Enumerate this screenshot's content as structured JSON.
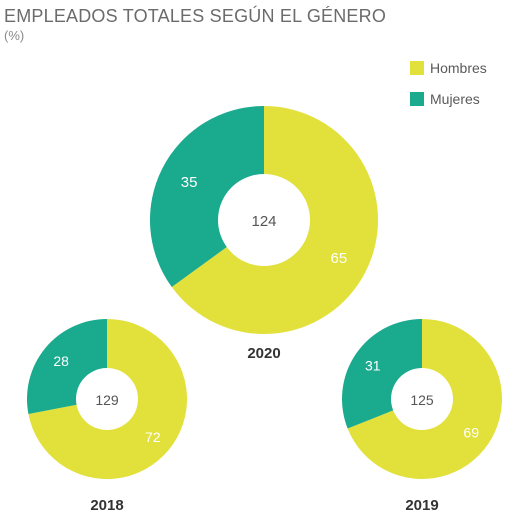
{
  "title": "EMPLEADOS TOTALES SEGÚN EL GÉNERO",
  "subtitle": "(%)",
  "legend": {
    "hombres": "Hombres",
    "mujeres": "Mujeres"
  },
  "colors": {
    "hombres": "#e2e03b",
    "mujeres": "#1aaa8e"
  },
  "chart_data": [
    {
      "type": "pie",
      "year": "2020",
      "center_total": "124",
      "series": [
        {
          "name": "Hombres",
          "value": 65
        },
        {
          "name": "Mujeres",
          "value": 35
        }
      ]
    },
    {
      "type": "pie",
      "year": "2018",
      "center_total": "129",
      "series": [
        {
          "name": "Hombres",
          "value": 72
        },
        {
          "name": "Mujeres",
          "value": 28
        }
      ]
    },
    {
      "type": "pie",
      "year": "2019",
      "center_total": "125",
      "series": [
        {
          "name": "Hombres",
          "value": 69
        },
        {
          "name": "Mujeres",
          "value": 31
        }
      ]
    }
  ]
}
